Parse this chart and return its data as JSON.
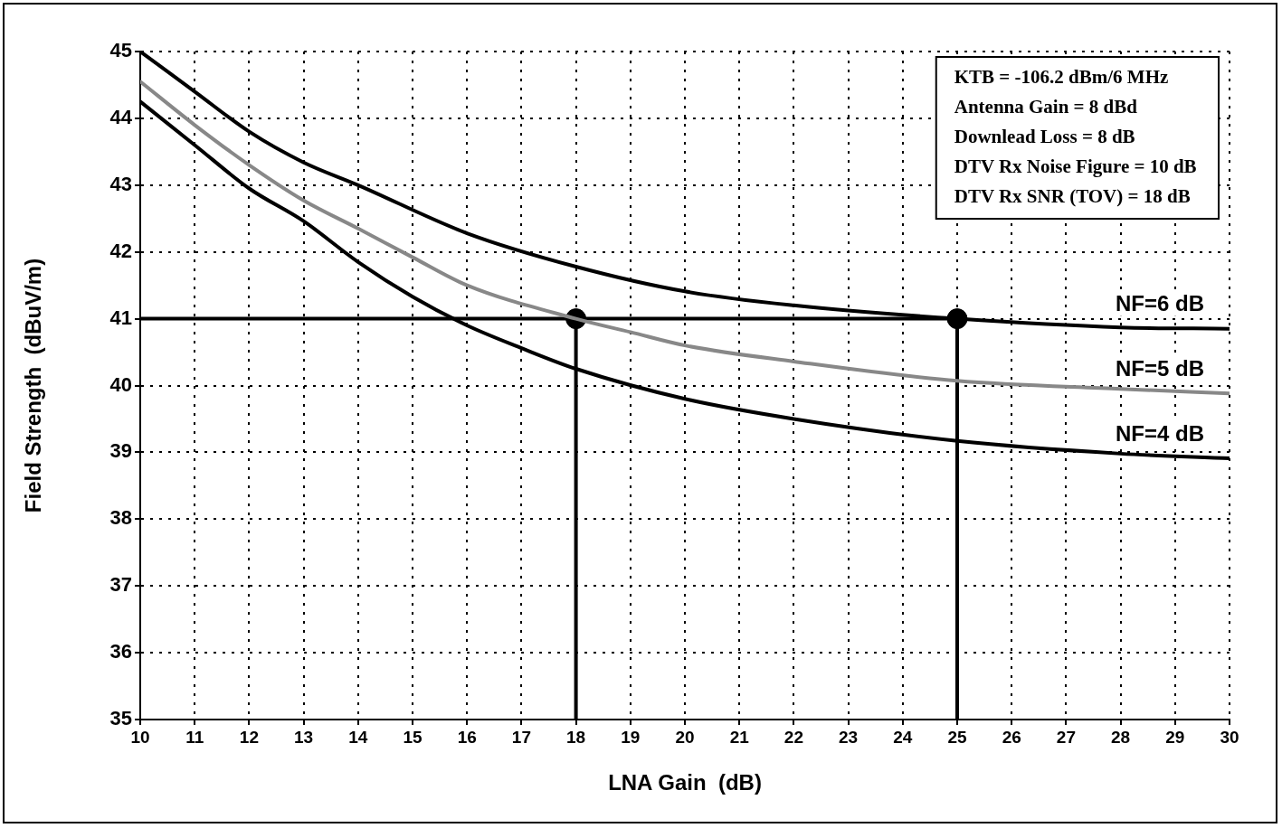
{
  "chart_data": {
    "type": "line",
    "xlabel": "LNA Gain  (dB)",
    "ylabel": "Field Strength  (dBuV/m)",
    "xlim": [
      10,
      30
    ],
    "ylim": [
      35,
      45
    ],
    "xticks": [
      10,
      11,
      12,
      13,
      14,
      15,
      16,
      17,
      18,
      19,
      20,
      21,
      22,
      23,
      24,
      25,
      26,
      27,
      28,
      29,
      30
    ],
    "yticks": [
      35,
      36,
      37,
      38,
      39,
      40,
      41,
      42,
      43,
      44,
      45
    ],
    "grid": true,
    "legend": false,
    "marker": "none",
    "line_style": "solid",
    "annotations": [
      "KTB = -106.2 dBm/6 MHz",
      "Antenna Gain = 8 dBd",
      "Downlead Loss = 8 dB",
      "DTV Rx Noise Figure = 10 dB",
      "DTV Rx SNR (TOV) = 18 dB"
    ],
    "series": [
      {
        "name": "NF=6 dB",
        "color": "#000000",
        "x": [
          10,
          11,
          12,
          13,
          14,
          16,
          18,
          20,
          22,
          25,
          28,
          30
        ],
        "values": [
          45.0,
          44.4,
          43.8,
          43.34,
          43.0,
          42.28,
          41.78,
          41.41,
          41.2,
          41.0,
          40.87,
          40.85
        ]
      },
      {
        "name": "NF=5 dB",
        "color": "#888888",
        "x": [
          10,
          11,
          12,
          13,
          14,
          15,
          16,
          18,
          19,
          20,
          22,
          25,
          28,
          30
        ],
        "values": [
          44.55,
          43.9,
          43.3,
          42.77,
          42.35,
          41.92,
          41.5,
          41.0,
          40.8,
          40.6,
          40.36,
          40.07,
          39.95,
          39.88
        ]
      },
      {
        "name": "NF=4 dB",
        "color": "#000000",
        "x": [
          10,
          11,
          12,
          13,
          14,
          15,
          16,
          17,
          18,
          20,
          22,
          25,
          28,
          30
        ],
        "values": [
          44.25,
          43.6,
          42.95,
          42.46,
          41.85,
          41.33,
          40.9,
          40.56,
          40.25,
          39.8,
          39.5,
          39.17,
          38.98,
          38.91
        ]
      },
      {
        "color": "#000000",
        "x": [
          10,
          25
        ],
        "values": [
          41,
          41
        ]
      },
      {
        "color": "#000000",
        "x": [
          18,
          18
        ],
        "values": [
          35,
          41
        ]
      },
      {
        "color": "#000000",
        "x": [
          25,
          25
        ],
        "values": [
          35,
          41
        ]
      },
      {
        "type": "scatter",
        "color": "#000000",
        "marker": "circle",
        "x": [
          18,
          25
        ],
        "values": [
          41,
          41
        ]
      }
    ]
  }
}
